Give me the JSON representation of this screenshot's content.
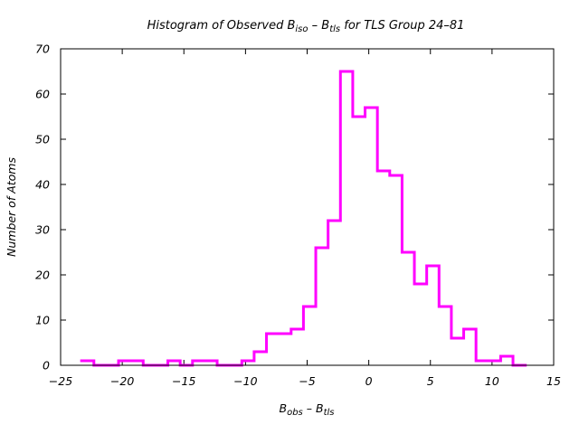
{
  "chart_data": {
    "type": "histogram",
    "title": {
      "prefix": "Histogram of Observed B",
      "sub1": "iso",
      "middle": " – B",
      "sub2": "tls",
      "suffix": "  for TLS Group 24–81"
    },
    "xlabel": {
      "b1": "B",
      "s1": "obs",
      "mid": " – B",
      "s2": "tls"
    },
    "ylabel": "Number of Atoms",
    "xlim": [
      -25,
      15
    ],
    "ylim": [
      0,
      70
    ],
    "xticks": [
      -25,
      -20,
      -15,
      -10,
      -5,
      0,
      5,
      10,
      15
    ],
    "xtick_labels": [
      "−25",
      "−20",
      "−15",
      "−10",
      "−5",
      "0",
      "5",
      "10",
      "15"
    ],
    "yticks": [
      0,
      10,
      20,
      30,
      40,
      50,
      60,
      70
    ],
    "ytick_labels": [
      "0",
      "10",
      "20",
      "30",
      "40",
      "50",
      "60",
      "70"
    ],
    "grid": false,
    "color": "#ff00ff",
    "bins": [
      {
        "x0": -23.3,
        "x1": -22.3,
        "count": 1
      },
      {
        "x0": -22.3,
        "x1": -21.3,
        "count": 0
      },
      {
        "x0": -21.3,
        "x1": -20.3,
        "count": 0
      },
      {
        "x0": -20.3,
        "x1": -19.3,
        "count": 1
      },
      {
        "x0": -19.3,
        "x1": -18.3,
        "count": 1
      },
      {
        "x0": -18.3,
        "x1": -17.3,
        "count": 0
      },
      {
        "x0": -17.3,
        "x1": -16.3,
        "count": 0
      },
      {
        "x0": -16.3,
        "x1": -15.3,
        "count": 1
      },
      {
        "x0": -15.3,
        "x1": -14.3,
        "count": 0
      },
      {
        "x0": -14.3,
        "x1": -13.3,
        "count": 1
      },
      {
        "x0": -13.3,
        "x1": -12.3,
        "count": 1
      },
      {
        "x0": -12.3,
        "x1": -11.3,
        "count": 0
      },
      {
        "x0": -11.3,
        "x1": -10.3,
        "count": 0
      },
      {
        "x0": -10.3,
        "x1": -9.3,
        "count": 1
      },
      {
        "x0": -9.3,
        "x1": -8.3,
        "count": 3
      },
      {
        "x0": -8.3,
        "x1": -7.3,
        "count": 7
      },
      {
        "x0": -7.3,
        "x1": -6.3,
        "count": 7
      },
      {
        "x0": -6.3,
        "x1": -5.3,
        "count": 8
      },
      {
        "x0": -5.3,
        "x1": -4.3,
        "count": 13
      },
      {
        "x0": -4.3,
        "x1": -3.3,
        "count": 26
      },
      {
        "x0": -3.3,
        "x1": -2.3,
        "count": 32
      },
      {
        "x0": -2.3,
        "x1": -1.3,
        "count": 65
      },
      {
        "x0": -1.3,
        "x1": -0.3,
        "count": 55
      },
      {
        "x0": -0.3,
        "x1": 0.7,
        "count": 57
      },
      {
        "x0": 0.7,
        "x1": 1.7,
        "count": 43
      },
      {
        "x0": 1.7,
        "x1": 2.7,
        "count": 42
      },
      {
        "x0": 2.7,
        "x1": 3.7,
        "count": 25
      },
      {
        "x0": 3.7,
        "x1": 4.7,
        "count": 18
      },
      {
        "x0": 4.7,
        "x1": 5.7,
        "count": 22
      },
      {
        "x0": 5.7,
        "x1": 6.7,
        "count": 13
      },
      {
        "x0": 6.7,
        "x1": 7.7,
        "count": 6
      },
      {
        "x0": 7.7,
        "x1": 8.7,
        "count": 8
      },
      {
        "x0": 8.7,
        "x1": 9.7,
        "count": 1
      },
      {
        "x0": 9.7,
        "x1": 10.7,
        "count": 1
      },
      {
        "x0": 10.7,
        "x1": 11.7,
        "count": 2
      },
      {
        "x0": 11.7,
        "x1": 12.7,
        "count": 0
      }
    ]
  }
}
